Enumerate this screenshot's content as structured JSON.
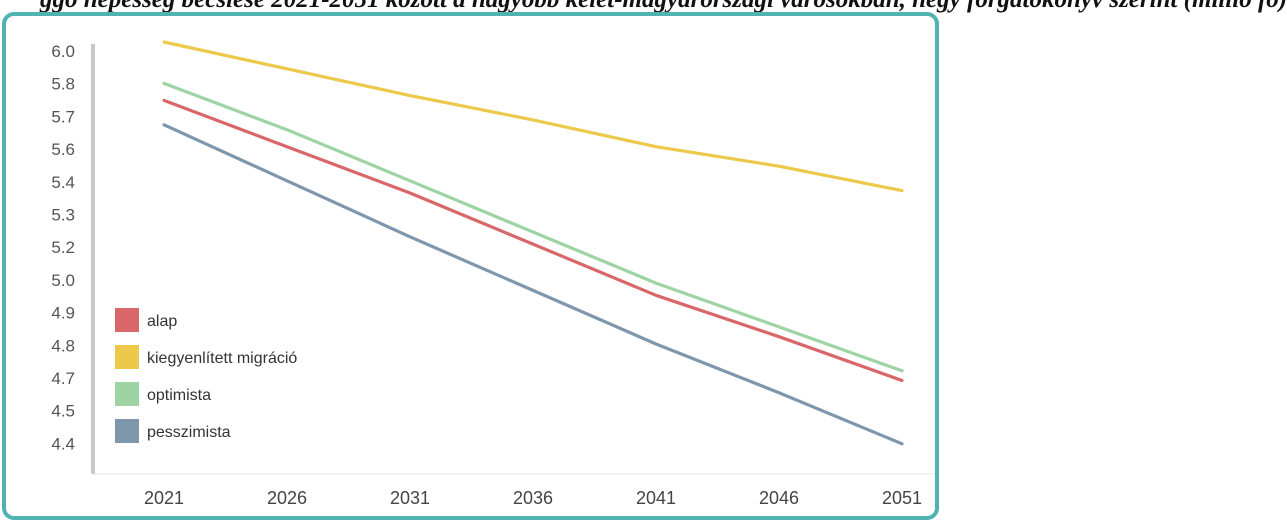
{
  "caption": "ggó népesség becslése 2021-2051 között a nagyobb kelet-magyarországi városokban, négy forgatókönyv szerint (millió fő)",
  "chart_data": {
    "type": "line",
    "title": "",
    "xlabel": "",
    "ylabel": "",
    "x": [
      2021,
      2026,
      2031,
      2036,
      2041,
      2046,
      2051
    ],
    "y_tick_labels": [
      "6.0",
      "5.8",
      "5.7",
      "5.6",
      "5.4",
      "5.3",
      "5.2",
      "5.0",
      "4.9",
      "4.8",
      "4.7",
      "4.5",
      "4.4"
    ],
    "ylim": [
      4.35,
      6.05
    ],
    "grid": false,
    "legend_position": "bottom-left",
    "series": [
      {
        "name": "alap",
        "color": "#d9676a",
        "values": [
          5.81,
          5.62,
          5.43,
          5.22,
          5.01,
          4.84,
          4.66
        ]
      },
      {
        "name": "kiegyenlített migráció",
        "color": "#ecc94b",
        "values": [
          6.05,
          5.94,
          5.83,
          5.73,
          5.62,
          5.54,
          5.44
        ]
      },
      {
        "name": "optimista",
        "color": "#9ed3a3",
        "values": [
          5.88,
          5.69,
          5.48,
          5.27,
          5.06,
          4.88,
          4.7
        ]
      },
      {
        "name": "pesszimista",
        "color": "#7e97ad",
        "values": [
          5.71,
          5.48,
          5.25,
          5.03,
          4.81,
          4.61,
          4.4
        ]
      }
    ]
  }
}
